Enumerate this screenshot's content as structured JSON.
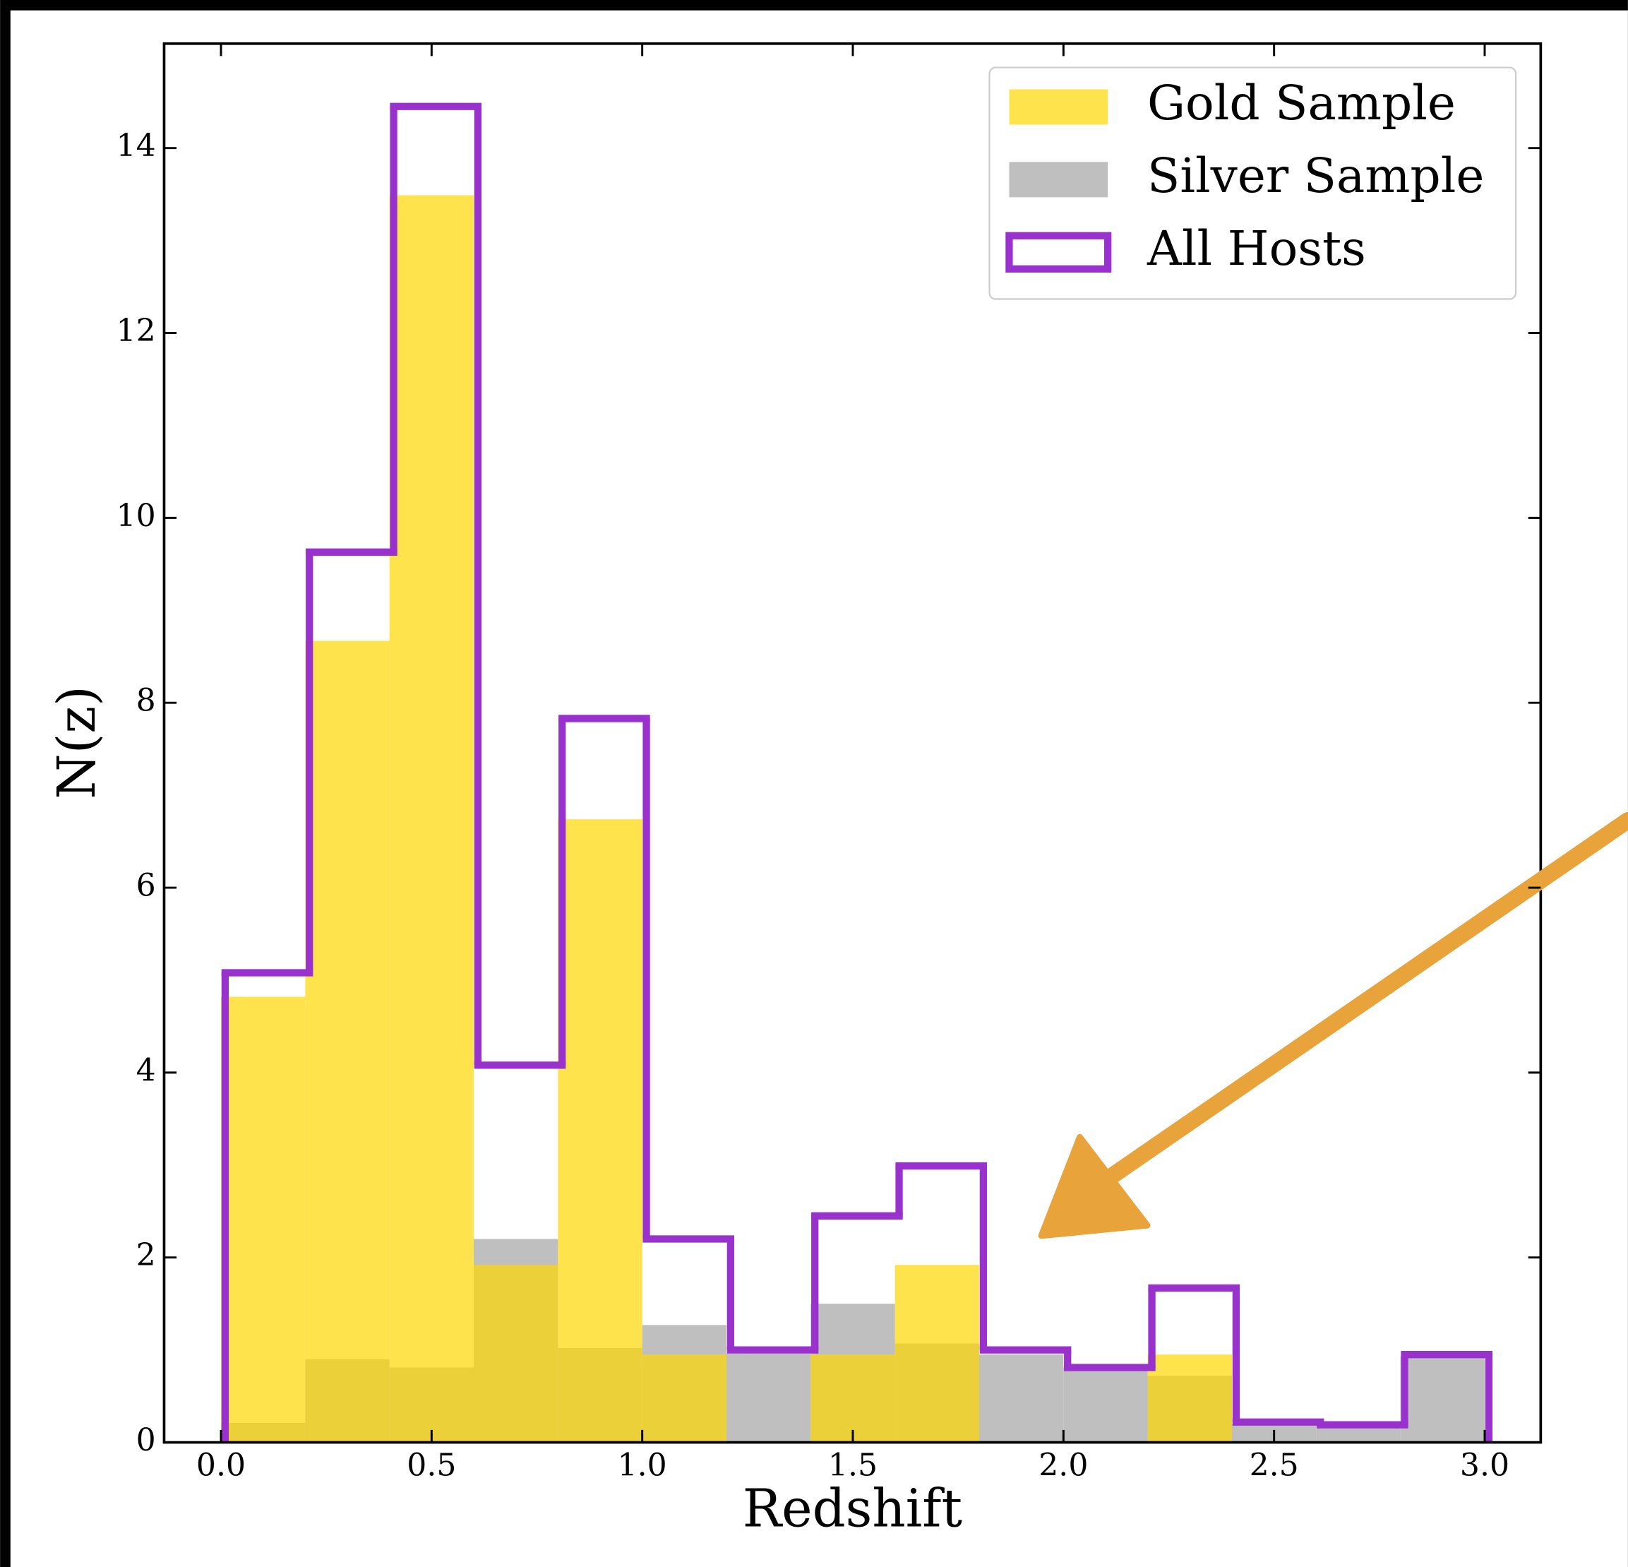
{
  "chart_data": {
    "type": "histogram",
    "xlabel": "Redshift",
    "ylabel": "N(z)",
    "bins": [
      0.0,
      0.2,
      0.4,
      0.6,
      0.8,
      1.0,
      1.2,
      1.4,
      1.6,
      1.8,
      2.0,
      2.2,
      2.4,
      2.6,
      2.8,
      3.0
    ],
    "series": [
      {
        "name": "Gold Sample",
        "color": "#ffd700",
        "style": "filled",
        "values": [
          4.82,
          8.67,
          13.49,
          1.92,
          6.74,
          0.95,
          0,
          0.95,
          1.92,
          0,
          0,
          0.95,
          0,
          0,
          0
        ]
      },
      {
        "name": "Silver Sample",
        "color": "#bfbfbf",
        "style": "filled",
        "values": [
          0.21,
          0.9,
          0.81,
          2.2,
          1.02,
          1.27,
          0.96,
          1.5,
          1.07,
          0.95,
          0.81,
          0.72,
          0.2,
          0.18,
          0.93
        ]
      },
      {
        "name": "All Hosts",
        "color": "#9932cc",
        "style": "step",
        "values": [
          5.08,
          9.63,
          14.45,
          4.08,
          7.83,
          2.2,
          1.0,
          2.45,
          2.99,
          1.0,
          0.81,
          1.67,
          0.22,
          0.19,
          0.95
        ]
      }
    ],
    "xlim": [
      -0.135,
      3.133
    ],
    "ylim": [
      0,
      15.13
    ],
    "xticks": [
      {
        "value": 0,
        "label": "0.0"
      },
      {
        "value": 0.5,
        "label": "0.5"
      },
      {
        "value": 1,
        "label": "1.0"
      },
      {
        "value": 1.5,
        "label": "1.5"
      },
      {
        "value": 2,
        "label": "2.0"
      },
      {
        "value": 2.5,
        "label": "2.5"
      },
      {
        "value": 3,
        "label": "3.0"
      }
    ],
    "yticks": [
      0,
      2,
      4,
      6,
      8,
      10,
      12,
      14
    ],
    "legend": "upper right"
  }
}
